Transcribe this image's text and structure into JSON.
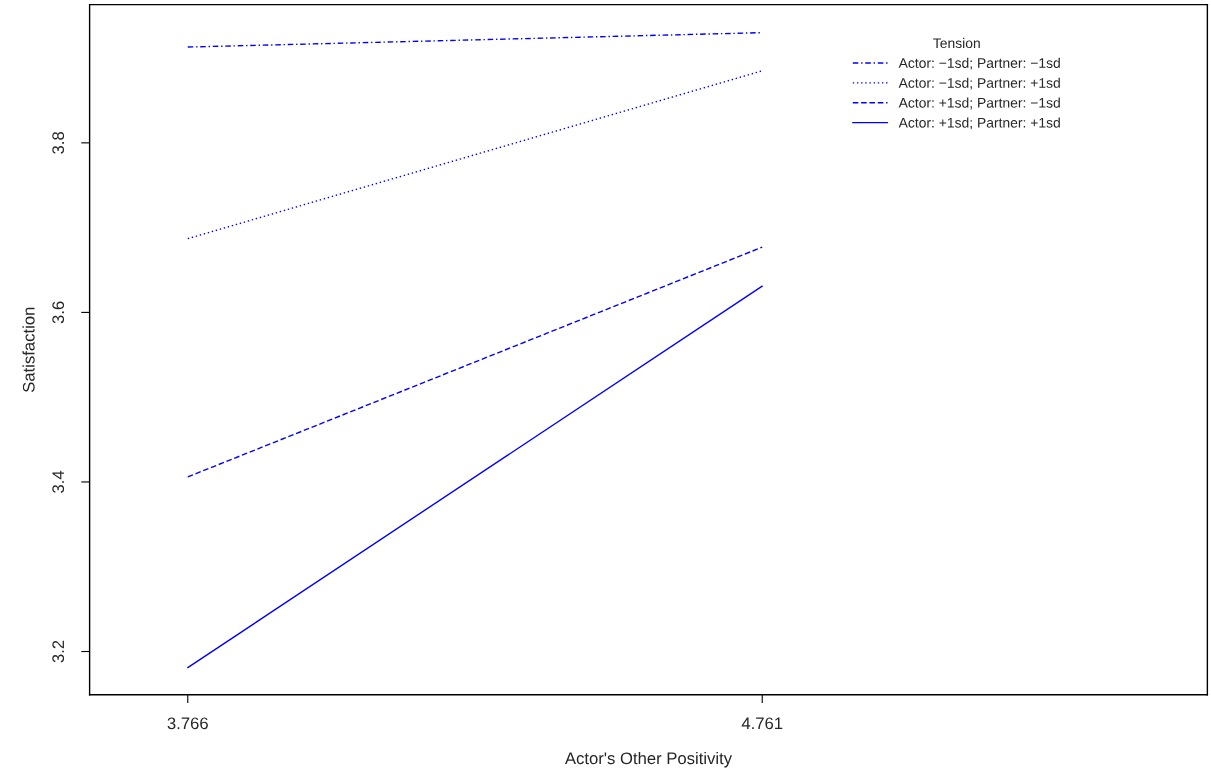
{
  "chart_data": {
    "type": "line",
    "xlabel": "Actor's Other Positivity",
    "ylabel": "Satisfaction",
    "legend_title": "Tension",
    "legend": "top right",
    "grid": false,
    "x": [
      3.766,
      4.761
    ],
    "xlim": [
      3.596,
      5.532
    ],
    "xticks": [
      3.766,
      4.761
    ],
    "ylim": [
      3.149,
      3.963
    ],
    "yticks": [
      3.2,
      3.4,
      3.6,
      3.8
    ],
    "series": [
      {
        "name": "Actor: −1sd; Partner: −1sd",
        "color": "#0000ff",
        "line_style": "dashdot",
        "values": [
          3.913,
          3.93
        ]
      },
      {
        "name": "Actor: −1sd; Partner: +1sd",
        "color": "#0000ff",
        "line_style": "dotted",
        "values": [
          3.687,
          3.885
        ]
      },
      {
        "name": "Actor: +1sd; Partner: −1sd",
        "color": "#0000ff",
        "line_style": "dashed",
        "values": [
          3.406,
          3.677
        ]
      },
      {
        "name": "Actor: +1sd; Partner: +1sd",
        "color": "#0000ff",
        "line_style": "solid",
        "values": [
          3.181,
          3.631
        ]
      }
    ]
  }
}
